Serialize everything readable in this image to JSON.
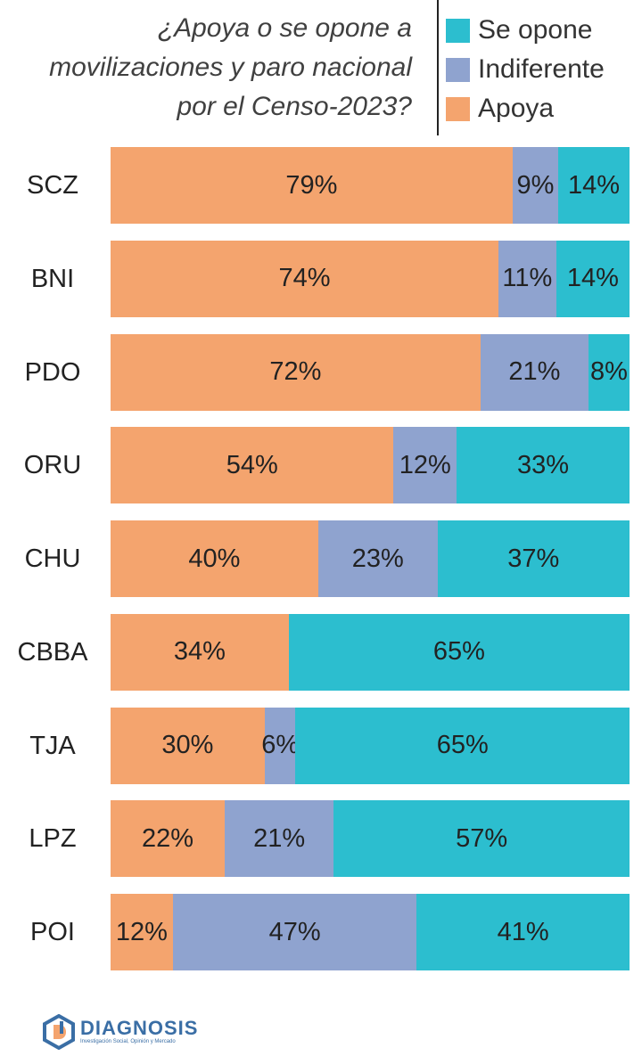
{
  "chart_data": {
    "type": "bar",
    "orientation": "horizontal",
    "stacked": true,
    "title_lines": [
      "¿Apoya o se opone a",
      "movilizaciones y paro nacional",
      "por el Censo-2023?"
    ],
    "categories": [
      "SCZ",
      "BNI",
      "PDO",
      "ORU",
      "CHU",
      "CBBA",
      "TJA",
      "LPZ",
      "POI"
    ],
    "series": [
      {
        "name": "Apoya",
        "color": "#F4A46E",
        "values": [
          79,
          74,
          72,
          54,
          40,
          34,
          30,
          22,
          12
        ]
      },
      {
        "name": "Indiferente",
        "color": "#8FA3CF",
        "values": [
          9,
          11,
          21,
          12,
          23,
          null,
          6,
          21,
          47
        ]
      },
      {
        "name": "Se opone",
        "color": "#2CBECF",
        "values": [
          14,
          14,
          8,
          33,
          37,
          65,
          65,
          57,
          41
        ]
      }
    ],
    "value_suffix": "%",
    "legend": {
      "placement": "top-right",
      "order": [
        "Se opone",
        "Indiferente",
        "Apoya"
      ]
    },
    "grid": false
  },
  "logo": {
    "name": "DIAGNOSIS",
    "tagline": "Investigación Social, Opinión y Mercado"
  }
}
